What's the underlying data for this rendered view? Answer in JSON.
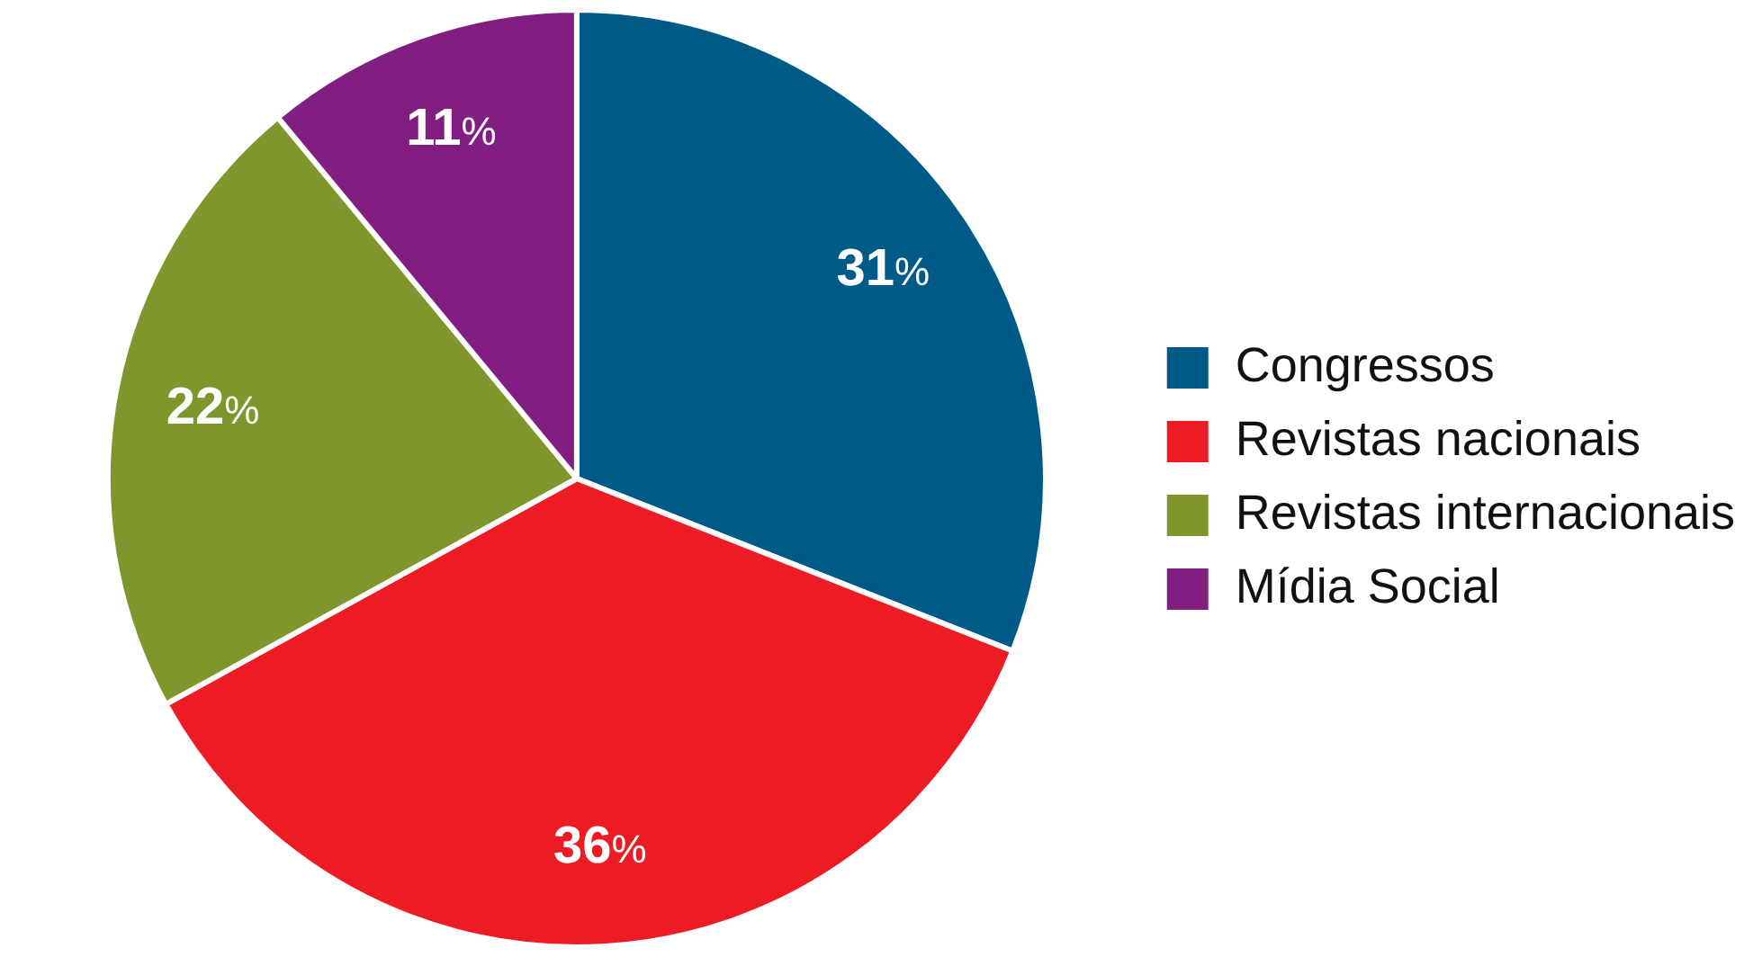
{
  "chart_data": {
    "type": "pie",
    "categories": [
      "Congressos",
      "Revistas nacionais",
      "Revistas internacionais",
      "Mídia Social"
    ],
    "values": [
      31,
      36,
      22,
      11
    ],
    "colors": [
      "#005a87",
      "#ed1c24",
      "#7e962b",
      "#821e82"
    ],
    "value_labels": [
      "31%",
      "36%",
      "22%",
      "11%"
    ],
    "legend": "right"
  }
}
